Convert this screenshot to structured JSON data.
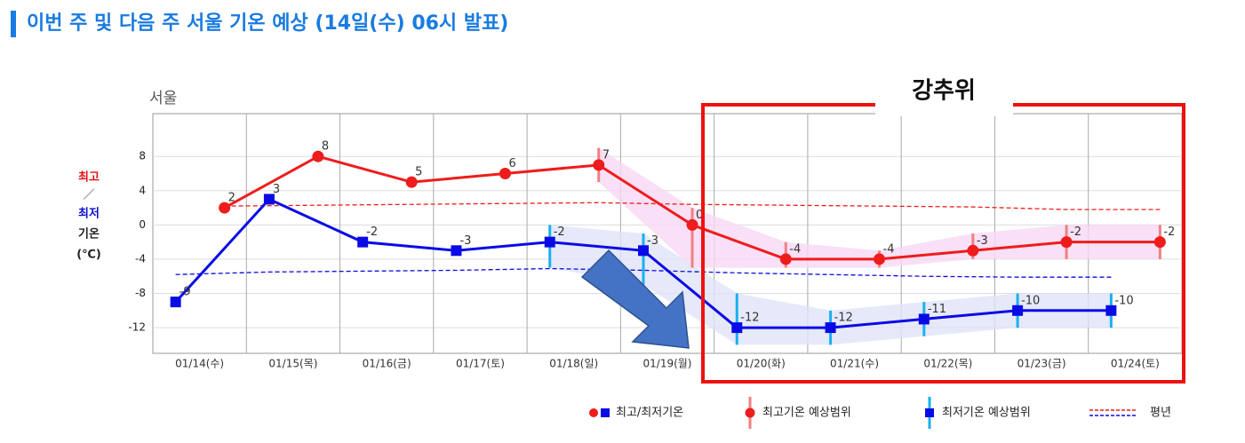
{
  "chart_data": {
    "type": "line",
    "title": "이번 주 및 다음 주 서울 기온 예상 (14일(수) 06시 발표)",
    "place": "서울",
    "ylabel": {
      "max": "최고",
      "sep": "／",
      "min": "최저",
      "word": "기온",
      "unit": "(℃)"
    },
    "annotation": "강추위",
    "categories": [
      "01/14(수)",
      "01/15(목)",
      "01/16(금)",
      "01/17(토)",
      "01/18(일)",
      "01/19(월)",
      "01/20(화)",
      "01/21(수)",
      "01/22(목)",
      "01/23(금)",
      "01/24(토)"
    ],
    "ylim": [
      -15,
      13
    ],
    "yticks": [
      8,
      4,
      0,
      -4,
      -8,
      -12
    ],
    "grid": true,
    "legend": [
      "최고/최저기온",
      "최고기온 예상범위",
      "최저기온 예상범위",
      "평년"
    ],
    "series": [
      {
        "color": "#ee1c1c",
        "range_color": "#f08080",
        "band_color": "#f8d8f4",
        "marker": "circle",
        "values": [
          2,
          8,
          5,
          6,
          7,
          0,
          -4,
          -4,
          -3,
          -2,
          -2
        ],
        "range_high": [
          null,
          null,
          null,
          null,
          9,
          2,
          -2,
          -3,
          -1,
          0,
          0
        ],
        "range_low": [
          null,
          null,
          null,
          null,
          5,
          -5,
          -5,
          -5,
          -4,
          -4,
          -4
        ],
        "normal": [
          2.2,
          2.3,
          2.4,
          2.5,
          2.6,
          2.4,
          2.3,
          2.2,
          2.1,
          1.8,
          1.8
        ]
      },
      {
        "color": "#0a0ae6",
        "range_color": "#1ab0f0",
        "band_color": "#e0e4f8",
        "marker": "square",
        "values": [
          -9,
          3,
          -2,
          -3,
          -2,
          -3,
          -12,
          -12,
          -11,
          -10,
          -10
        ],
        "range_high": [
          null,
          null,
          null,
          null,
          0,
          -1,
          -8,
          -10,
          -9,
          -8,
          -8
        ],
        "range_low": [
          null,
          null,
          null,
          null,
          -5,
          -7,
          -14,
          -14,
          -13,
          -12,
          -12
        ],
        "normal": [
          -5.8,
          -5.5,
          -5.4,
          -5.3,
          -5.1,
          -5.3,
          -5.6,
          -5.8,
          -6.0,
          -6.1,
          -6.1
        ]
      }
    ]
  }
}
